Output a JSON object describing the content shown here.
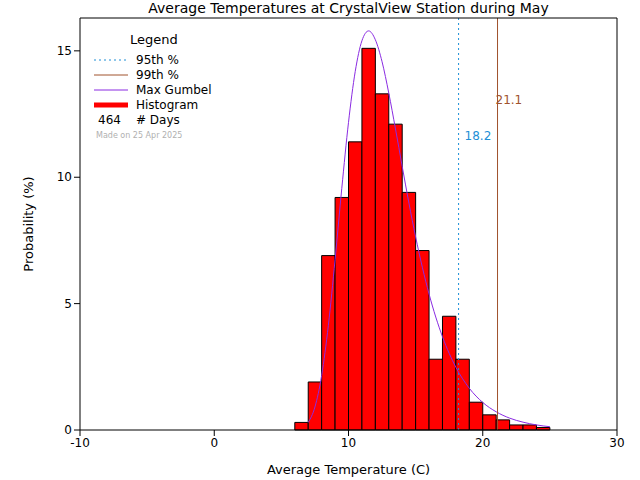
{
  "chart_data": {
    "type": "histogram",
    "title": "Average Temperatures at CrystalView Station during May",
    "x_label": "Average Temperature (C)",
    "y_label": "Probability (%)",
    "histogram_name": "Histogram",
    "bins": [
      6,
      7,
      8,
      9,
      10,
      11,
      12,
      13,
      14,
      15,
      16,
      17,
      18,
      19,
      20,
      21,
      22,
      23,
      24,
      25
    ],
    "values": [
      0.3,
      1.9,
      6.9,
      9.2,
      11.4,
      15.1,
      13.3,
      12.1,
      9.4,
      7.1,
      2.8,
      4.5,
      2.8,
      1.1,
      0.6,
      0.4,
      0.2,
      0.2,
      0.1
    ],
    "color": "#ff0000",
    "series": [
      {
        "name": "Max Gumbel",
        "type": "line",
        "color": "#8a2be2",
        "x": [
          7,
          7.5,
          8,
          8.5,
          9,
          9.5,
          10,
          10.5,
          11,
          11.5,
          12,
          12.5,
          13,
          13.5,
          14,
          14.5,
          15,
          16,
          17,
          18,
          19,
          20,
          21,
          22,
          23,
          24,
          25
        ],
        "values": [
          0.3,
          0.91,
          2.16,
          4.14,
          6.74,
          9.56,
          12.17,
          14.18,
          15.4,
          15.79,
          15.44,
          14.57,
          13.33,
          11.91,
          10.43,
          8.98,
          7.64,
          5.38,
          3.69,
          2.48,
          1.65,
          1.09,
          0.72,
          0.47,
          0.31,
          0.2,
          0.13
        ]
      }
    ],
    "percentiles": [
      {
        "name": "95th %",
        "value": 18.2,
        "color": "#1e8fd6",
        "line_style": "dotted"
      },
      {
        "name": "99th %",
        "value": 21.1,
        "color": "#a0522d",
        "line_style": "solid"
      }
    ],
    "legend": "upper left",
    "legend_title": "Legend",
    "days": 464,
    "days_label": "# Days",
    "annotations": [
      "Made on 25 Apr 2025"
    ],
    "xlim": [
      -10,
      30
    ],
    "xticks": [
      -10,
      0,
      10,
      20,
      30
    ],
    "ylim": [
      0,
      16.3
    ],
    "yticks": [
      0,
      5,
      10,
      15
    ]
  }
}
